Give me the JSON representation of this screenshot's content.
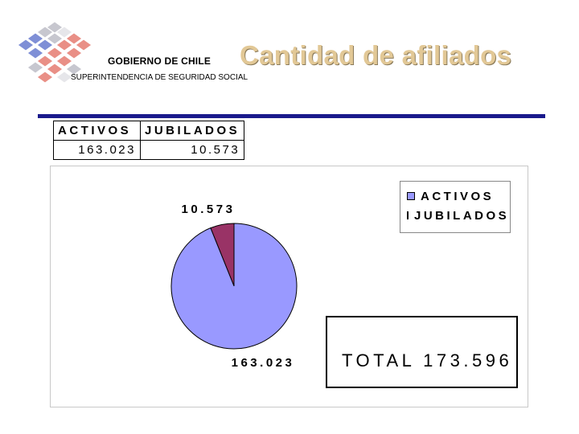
{
  "header": {
    "government": "GOBIERNO DE CHILE",
    "agency": "SUPERINTENDENCIA DE SEGURIDAD SOCIAL",
    "title": "Cantidad de afiliados",
    "logo_icon": "chile-government-cube-logo-icon"
  },
  "summary_table": {
    "headers": [
      "ACTIVOS",
      "JUBILADOS"
    ],
    "values": [
      "163.023",
      "10.573"
    ]
  },
  "chart_data": {
    "type": "pie",
    "categories": [
      "ACTIVOS",
      "JUBILADOS"
    ],
    "values": [
      163023,
      10573
    ],
    "data_labels": [
      "163.023",
      "10.573"
    ],
    "colors": [
      "#9999ff",
      "#993366"
    ],
    "legend": {
      "placement": "top-right",
      "entries": [
        "ACTIVOS",
        "JUBILADOS"
      ]
    },
    "total_label": "TOTAL 173.596"
  }
}
